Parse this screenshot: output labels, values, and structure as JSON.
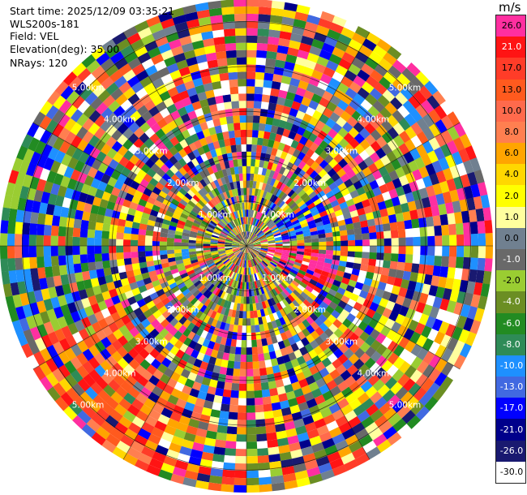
{
  "header": {
    "start_time": "Start time: 2025/12/09 03:35:21",
    "instrument": "WLS200s-181",
    "field": "Field: VEL",
    "elevation": "Elevation(deg): 35.00",
    "nrays": "NRays: 120"
  },
  "colorbar": {
    "unit": "m/s",
    "levels": [
      {
        "label": "26.0",
        "color": "#ff2fa0"
      },
      {
        "label": "21.0",
        "color": "#ff1414"
      },
      {
        "label": "17.0",
        "color": "#ff3c28"
      },
      {
        "label": "13.0",
        "color": "#ff5a1e"
      },
      {
        "label": "10.0",
        "color": "#ff6a4c"
      },
      {
        "label": "8.0",
        "color": "#ff7f50"
      },
      {
        "label": "6.0",
        "color": "#ffa500"
      },
      {
        "label": "4.0",
        "color": "#ffd700"
      },
      {
        "label": "2.0",
        "color": "#ffff00"
      },
      {
        "label": "1.0",
        "color": "#ffff9e"
      },
      {
        "label": "0.0",
        "color": "#708090"
      },
      {
        "label": "-1.0",
        "color": "#696969"
      },
      {
        "label": "-2.0",
        "color": "#9acd32"
      },
      {
        "label": "-4.0",
        "color": "#6b8e23"
      },
      {
        "label": "-6.0",
        "color": "#228b22"
      },
      {
        "label": "-8.0",
        "color": "#2e8b57"
      },
      {
        "label": "-10.0",
        "color": "#1e90ff"
      },
      {
        "label": "-13.0",
        "color": "#4169e1"
      },
      {
        "label": "-17.0",
        "color": "#0000ff"
      },
      {
        "label": "-21.0",
        "color": "#00008b"
      },
      {
        "label": "-26.0",
        "color": "#191970"
      },
      {
        "label": "-30.0",
        "color": "#ffffff"
      }
    ]
  },
  "chart_data": {
    "type": "heatmap",
    "projection": "polar (PPI)",
    "field": "VEL",
    "unit": "m/s",
    "elevation_deg": 35.0,
    "nrays": 120,
    "max_range_km": 5.5,
    "range_ring_labels": [
      "1.00km",
      "2.00km",
      "3.00km",
      "4.00km",
      "5.00km"
    ],
    "range_rings_km": [
      1,
      2,
      3,
      4,
      5
    ],
    "colorbar_range": [
      -30,
      30
    ],
    "notable_regions": [
      {
        "direction": "east, slightly south (range 0.3–1.3 km)",
        "value_desc": "hot pink / red, ~20–26 m/s"
      },
      {
        "direction": "north-east (range 0.5–1.3 km)",
        "value_desc": "blue, ~ -13 to -17 m/s"
      },
      {
        "direction": "south-west (range 3–5 km)",
        "value_desc": "orange / red, ~8–21 m/s"
      },
      {
        "direction": "west (range 3–5 km)",
        "value_desc": "green / blue, ~ -4 to -17 m/s"
      },
      {
        "direction": "near center",
        "value_desc": "noisy mixture, mostly green / grey"
      }
    ]
  }
}
